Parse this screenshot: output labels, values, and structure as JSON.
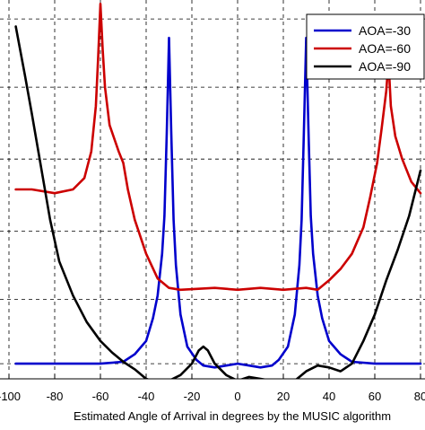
{
  "chart_data": {
    "type": "line",
    "xlabel": "Estimated Angle of Arrival in degrees by the MUSIC algorithm",
    "xlim": [
      -100,
      80
    ],
    "x_ticks": [
      -100,
      -80,
      -60,
      -40,
      -20,
      0,
      20,
      40,
      60,
      80
    ],
    "x_tick_labels": [
      "-100",
      "-80",
      "-60",
      "-40",
      "-20",
      "0",
      "20",
      "40",
      "60",
      "80"
    ],
    "ylabel": "",
    "ylim": [
      0,
      1
    ],
    "y_grid": [
      0.04,
      0.21,
      0.39,
      0.58,
      0.77,
      0.95
    ],
    "grid": true,
    "legend_position": "top-right",
    "series": [
      {
        "name": "AOA=-30",
        "color": "#0000cc",
        "points": [
          [
            -97,
            0.04
          ],
          [
            -80,
            0.04
          ],
          [
            -60,
            0.04
          ],
          [
            -50,
            0.045
          ],
          [
            -45,
            0.065
          ],
          [
            -40,
            0.1
          ],
          [
            -37,
            0.16
          ],
          [
            -35,
            0.22
          ],
          [
            -33,
            0.33
          ],
          [
            -32,
            0.43
          ],
          [
            -31,
            0.65
          ],
          [
            -30,
            0.9
          ],
          [
            -29,
            0.65
          ],
          [
            -28,
            0.42
          ],
          [
            -27,
            0.3
          ],
          [
            -25,
            0.17
          ],
          [
            -22,
            0.085
          ],
          [
            -18,
            0.05
          ],
          [
            -15,
            0.035
          ],
          [
            -10,
            0.03
          ],
          [
            -5,
            0.035
          ],
          [
            0,
            0.04
          ],
          [
            5,
            0.035
          ],
          [
            10,
            0.03
          ],
          [
            15,
            0.035
          ],
          [
            18,
            0.05
          ],
          [
            22,
            0.085
          ],
          [
            25,
            0.17
          ],
          [
            27,
            0.3
          ],
          [
            28,
            0.42
          ],
          [
            29,
            0.65
          ],
          [
            30,
            0.9
          ],
          [
            31,
            0.65
          ],
          [
            32,
            0.43
          ],
          [
            33,
            0.33
          ],
          [
            35,
            0.22
          ],
          [
            37,
            0.16
          ],
          [
            40,
            0.1
          ],
          [
            45,
            0.065
          ],
          [
            50,
            0.045
          ],
          [
            60,
            0.04
          ],
          [
            80,
            0.04
          ]
        ]
      },
      {
        "name": "AOA=-60",
        "color": "#cc0000",
        "points": [
          [
            -97,
            0.5
          ],
          [
            -90,
            0.5
          ],
          [
            -80,
            0.49
          ],
          [
            -72,
            0.5
          ],
          [
            -67,
            0.53
          ],
          [
            -64,
            0.6
          ],
          [
            -62,
            0.72
          ],
          [
            -61,
            0.85
          ],
          [
            -60,
            0.99
          ],
          [
            -59,
            0.87
          ],
          [
            -58,
            0.77
          ],
          [
            -56,
            0.67
          ],
          [
            -52,
            0.6
          ],
          [
            -50,
            0.57
          ],
          [
            -48,
            0.5
          ],
          [
            -45,
            0.42
          ],
          [
            -40,
            0.33
          ],
          [
            -35,
            0.265
          ],
          [
            -30,
            0.24
          ],
          [
            -25,
            0.235
          ],
          [
            -10,
            0.24
          ],
          [
            0,
            0.235
          ],
          [
            10,
            0.24
          ],
          [
            20,
            0.235
          ],
          [
            30,
            0.24
          ],
          [
            35,
            0.235
          ],
          [
            40,
            0.26
          ],
          [
            45,
            0.29
          ],
          [
            50,
            0.33
          ],
          [
            55,
            0.4
          ],
          [
            58,
            0.48
          ],
          [
            61,
            0.57
          ],
          [
            63,
            0.66
          ],
          [
            65,
            0.76
          ],
          [
            66,
            0.84
          ],
          [
            67,
            0.72
          ],
          [
            69,
            0.64
          ],
          [
            72,
            0.58
          ],
          [
            76,
            0.52
          ],
          [
            80,
            0.49
          ]
        ]
      },
      {
        "name": "AOA=-90",
        "color": "#000000",
        "points": [
          [
            -97,
            0.93
          ],
          [
            -93,
            0.8
          ],
          [
            -90,
            0.7
          ],
          [
            -86,
            0.56
          ],
          [
            -82,
            0.42
          ],
          [
            -78,
            0.31
          ],
          [
            -72,
            0.22
          ],
          [
            -66,
            0.15
          ],
          [
            -60,
            0.1
          ],
          [
            -55,
            0.07
          ],
          [
            -50,
            0.045
          ],
          [
            -45,
            0.025
          ],
          [
            -40,
            0.0
          ],
          [
            -35,
            -0.01
          ],
          [
            -30,
            -0.005
          ],
          [
            -25,
            0.01
          ],
          [
            -20,
            0.04
          ],
          [
            -17,
            0.075
          ],
          [
            -15,
            0.085
          ],
          [
            -13,
            0.075
          ],
          [
            -10,
            0.04
          ],
          [
            -5,
            0.01
          ],
          [
            0,
            -0.005
          ],
          [
            5,
            0.005
          ],
          [
            10,
            0.0
          ],
          [
            15,
            -0.005
          ],
          [
            20,
            -0.01
          ],
          [
            25,
            -0.005
          ],
          [
            30,
            0.02
          ],
          [
            35,
            0.035
          ],
          [
            40,
            0.03
          ],
          [
            45,
            0.02
          ],
          [
            50,
            0.04
          ],
          [
            55,
            0.1
          ],
          [
            60,
            0.17
          ],
          [
            65,
            0.26
          ],
          [
            70,
            0.34
          ],
          [
            75,
            0.43
          ],
          [
            80,
            0.55
          ]
        ]
      }
    ]
  }
}
